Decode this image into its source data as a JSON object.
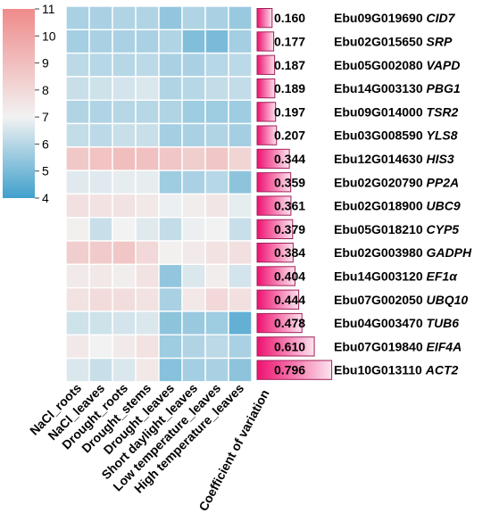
{
  "chart_data": {
    "type": "heatmap",
    "colorbar": {
      "ticks": [
        11,
        10,
        9,
        8,
        7,
        6,
        5,
        4
      ],
      "range": [
        4,
        11
      ],
      "low_color": "#3fa0cc",
      "mid_color": "#f2f2f2",
      "high_color": "#f08a8a",
      "mid_value": 7
    },
    "columns": [
      "NaCl_roots",
      "NaCl_leaves",
      "Drought_roots",
      "Drought_stems",
      "Drought_leaves",
      "Short daylight_leaves",
      "Low temperature_leaves",
      "High temperature_leaves"
    ],
    "rows": [
      {
        "id": "Ebu09G019690",
        "gene": "CID7",
        "cv": "0.160",
        "cv_value": 0.16,
        "values": [
          5.8,
          5.8,
          5.9,
          5.9,
          5.4,
          5.9,
          5.8,
          5.5
        ]
      },
      {
        "id": "Ebu02G015650",
        "gene": "SRP",
        "cv": "0.177",
        "cv_value": 0.177,
        "values": [
          5.7,
          5.8,
          5.8,
          5.8,
          5.9,
          5.1,
          5.0,
          5.7
        ]
      },
      {
        "id": "Ebu05G002080",
        "gene": "VAPD",
        "cv": "0.187",
        "cv_value": 0.187,
        "values": [
          6.1,
          6.0,
          6.0,
          6.1,
          5.8,
          5.8,
          6.0,
          6.1
        ]
      },
      {
        "id": "Ebu14G003130",
        "gene": "PBG1",
        "cv": "0.189",
        "cv_value": 0.189,
        "values": [
          6.3,
          6.4,
          6.5,
          6.6,
          5.9,
          6.0,
          6.2,
          6.2
        ]
      },
      {
        "id": "Ebu09G014000",
        "gene": "TSR2",
        "cv": "0.197",
        "cv_value": 0.197,
        "values": [
          5.9,
          5.9,
          6.0,
          6.0,
          5.9,
          5.6,
          5.6,
          5.6
        ]
      },
      {
        "id": "Ebu03G008590",
        "gene": "YLS8",
        "cv": "0.207",
        "cv_value": 0.207,
        "values": [
          6.2,
          6.1,
          6.3,
          6.3,
          5.7,
          5.8,
          5.9,
          5.7
        ]
      },
      {
        "id": "Ebu12G014630",
        "gene": "HIS3",
        "cv": "0.344",
        "cv_value": 0.344,
        "values": [
          8.6,
          8.8,
          9.0,
          8.9,
          8.7,
          8.4,
          8.7,
          8.1
        ]
      },
      {
        "id": "Ebu02G020790",
        "gene": "PP2A",
        "cv": "0.359",
        "cv_value": 0.359,
        "values": [
          6.7,
          6.7,
          6.8,
          6.8,
          5.6,
          5.8,
          6.0,
          5.3
        ]
      },
      {
        "id": "Ebu02G018900",
        "gene": "UBC9",
        "cv": "0.361",
        "cv_value": 0.361,
        "values": [
          7.7,
          7.6,
          7.6,
          7.4,
          6.9,
          7.2,
          7.5,
          6.8
        ]
      },
      {
        "id": "Ebu05G018210",
        "gene": "CYP5",
        "cv": "0.379",
        "cv_value": 0.379,
        "values": [
          7.1,
          6.3,
          7.0,
          6.7,
          6.2,
          6.9,
          7.0,
          6.3
        ]
      },
      {
        "id": "Ebu02G003980",
        "gene": "GADPH",
        "cv": "0.384",
        "cv_value": 0.384,
        "values": [
          8.4,
          8.5,
          8.7,
          8.0,
          7.1,
          7.3,
          7.6,
          7.7
        ]
      },
      {
        "id": "Ebu14G003120",
        "gene": "EF1α",
        "cv": "0.404",
        "cv_value": 0.404,
        "values": [
          7.3,
          7.4,
          7.2,
          7.6,
          5.4,
          6.6,
          7.2,
          6.5
        ]
      },
      {
        "id": "Ebu07G002050",
        "gene": "UBQ10",
        "cv": "0.444",
        "cv_value": 0.444,
        "values": [
          7.6,
          7.9,
          7.8,
          7.6,
          5.8,
          7.4,
          8.0,
          7.7
        ]
      },
      {
        "id": "Ebu04G003470",
        "gene": "TUB6",
        "cv": "0.478",
        "cv_value": 0.478,
        "values": [
          6.4,
          6.4,
          6.5,
          6.6,
          5.3,
          5.5,
          5.6,
          4.6
        ]
      },
      {
        "id": "Ebu07G019840",
        "gene": "EIF4A",
        "cv": "0.610",
        "cv_value": 0.61,
        "values": [
          7.4,
          7.0,
          7.3,
          7.6,
          5.6,
          5.9,
          6.1,
          5.8
        ]
      },
      {
        "id": "Ebu10G013110",
        "gene": "ACT2",
        "cv": "0.796",
        "cv_value": 0.796,
        "values": [
          6.6,
          6.3,
          6.6,
          7.4,
          5.2,
          5.7,
          5.8,
          5.3
        ]
      }
    ],
    "cv_axis_label": "Coefficient of variation",
    "cv_bar_color_start": "#ee1170",
    "cv_bar_color_end": "#fce3ee",
    "cv_bar_border": "#a0205a"
  }
}
